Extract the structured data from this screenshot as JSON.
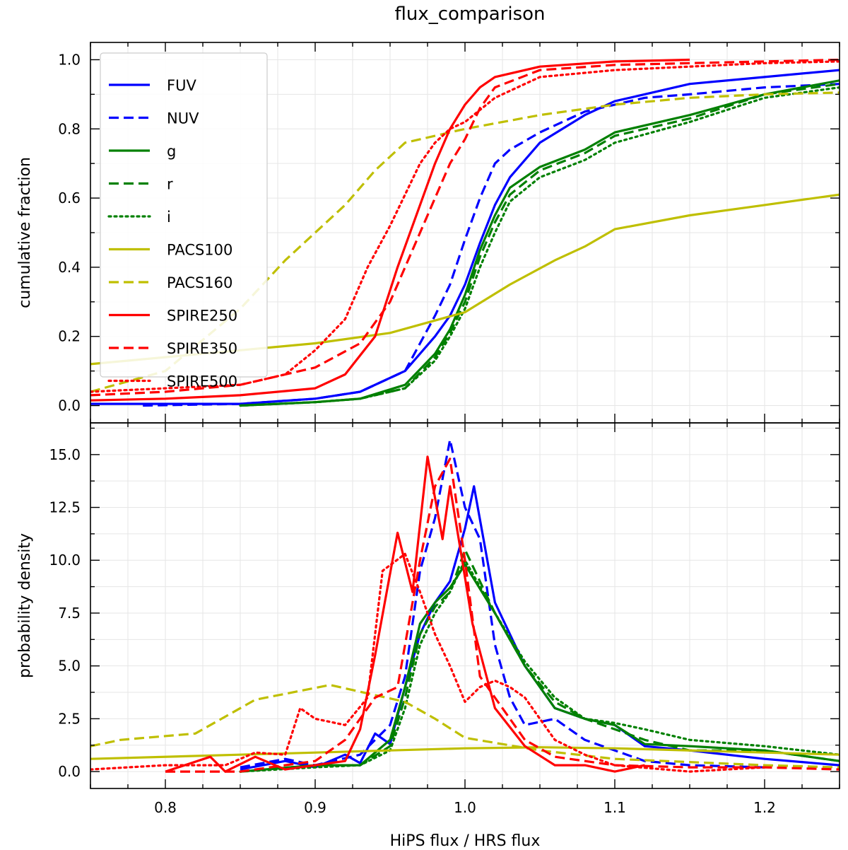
{
  "chart_data": {
    "type": "line",
    "title": "flux_comparison",
    "xlabel": "HiPS flux / HRS flux",
    "xlim": [
      0.75,
      1.25
    ],
    "xticks": [
      "0.8",
      "0.9",
      "1.0",
      "1.1",
      "1.2"
    ],
    "legend_position": "top-left",
    "legend": [
      {
        "label": "FUV",
        "color": "#0000ff",
        "style": "solid"
      },
      {
        "label": "NUV",
        "color": "#0000ff",
        "style": "dashed"
      },
      {
        "label": "g",
        "color": "#008000",
        "style": "solid"
      },
      {
        "label": "r",
        "color": "#008000",
        "style": "dashed"
      },
      {
        "label": "i",
        "color": "#008000",
        "style": "dotted"
      },
      {
        "label": "PACS100",
        "color": "#bfbf00",
        "style": "solid"
      },
      {
        "label": "PACS160",
        "color": "#bfbf00",
        "style": "dashed"
      },
      {
        "label": "SPIRE250",
        "color": "#ff0000",
        "style": "solid"
      },
      {
        "label": "SPIRE350",
        "color": "#ff0000",
        "style": "dashed"
      },
      {
        "label": "SPIRE500",
        "color": "#ff0000",
        "style": "dotted"
      }
    ],
    "panels": [
      {
        "name": "cumulative",
        "ylabel": "cumulative fraction",
        "ylim": [
          -0.05,
          1.05
        ],
        "yticks": [
          "0.0",
          "0.2",
          "0.4",
          "0.6",
          "0.8",
          "1.0"
        ],
        "series": [
          {
            "name": "FUV",
            "x": [
              0.75,
              0.85,
              0.9,
              0.93,
              0.96,
              0.98,
              0.99,
              1.0,
              1.01,
              1.02,
              1.03,
              1.05,
              1.08,
              1.1,
              1.15,
              1.2,
              1.25
            ],
            "y": [
              0.005,
              0.005,
              0.02,
              0.04,
              0.1,
              0.2,
              0.26,
              0.35,
              0.47,
              0.58,
              0.66,
              0.76,
              0.84,
              0.88,
              0.93,
              0.95,
              0.97
            ]
          },
          {
            "name": "NUV",
            "x": [
              0.785,
              0.85,
              0.9,
              0.93,
              0.96,
              0.98,
              0.99,
              1.0,
              1.01,
              1.02,
              1.03,
              1.05,
              1.08,
              1.12,
              1.15,
              1.2,
              1.25
            ],
            "y": [
              0.0,
              0.005,
              0.02,
              0.04,
              0.1,
              0.26,
              0.35,
              0.48,
              0.6,
              0.7,
              0.74,
              0.79,
              0.85,
              0.89,
              0.9,
              0.92,
              0.93
            ]
          },
          {
            "name": "g",
            "x": [
              0.85,
              0.9,
              0.93,
              0.96,
              0.98,
              0.99,
              1.0,
              1.01,
              1.02,
              1.03,
              1.05,
              1.08,
              1.1,
              1.15,
              1.2,
              1.25
            ],
            "y": [
              0.0,
              0.01,
              0.02,
              0.06,
              0.15,
              0.22,
              0.32,
              0.45,
              0.55,
              0.63,
              0.69,
              0.74,
              0.79,
              0.84,
              0.9,
              0.94
            ]
          },
          {
            "name": "r",
            "x": [
              0.85,
              0.9,
              0.93,
              0.96,
              0.98,
              0.99,
              1.0,
              1.01,
              1.02,
              1.03,
              1.05,
              1.08,
              1.1,
              1.15,
              1.2,
              1.25
            ],
            "y": [
              0.0,
              0.01,
              0.02,
              0.05,
              0.14,
              0.21,
              0.3,
              0.43,
              0.53,
              0.61,
              0.68,
              0.73,
              0.78,
              0.83,
              0.9,
              0.93
            ]
          },
          {
            "name": "i",
            "x": [
              0.85,
              0.9,
              0.93,
              0.96,
              0.98,
              0.99,
              1.0,
              1.01,
              1.02,
              1.03,
              1.05,
              1.08,
              1.1,
              1.15,
              1.2,
              1.25
            ],
            "y": [
              0.0,
              0.01,
              0.02,
              0.05,
              0.13,
              0.2,
              0.28,
              0.4,
              0.5,
              0.59,
              0.66,
              0.71,
              0.76,
              0.82,
              0.89,
              0.92
            ]
          },
          {
            "name": "PACS100",
            "x": [
              0.75,
              0.8,
              0.85,
              0.9,
              0.95,
              1.0,
              1.03,
              1.06,
              1.08,
              1.1,
              1.15,
              1.2,
              1.25
            ],
            "y": [
              0.12,
              0.14,
              0.16,
              0.18,
              0.21,
              0.27,
              0.35,
              0.42,
              0.46,
              0.51,
              0.55,
              0.58,
              0.61
            ]
          },
          {
            "name": "PACS160",
            "x": [
              0.75,
              0.8,
              0.85,
              0.88,
              0.9,
              0.92,
              0.94,
              0.96,
              0.98,
              1.0,
              1.05,
              1.1,
              1.15,
              1.2,
              1.25
            ],
            "y": [
              0.04,
              0.1,
              0.28,
              0.42,
              0.5,
              0.58,
              0.68,
              0.76,
              0.78,
              0.8,
              0.84,
              0.87,
              0.89,
              0.9,
              0.905
            ]
          },
          {
            "name": "SPIRE250",
            "x": [
              0.75,
              0.8,
              0.85,
              0.9,
              0.92,
              0.94,
              0.955,
              0.97,
              0.98,
              0.99,
              1.0,
              1.01,
              1.02,
              1.05,
              1.1,
              1.15
            ],
            "y": [
              0.015,
              0.02,
              0.03,
              0.05,
              0.09,
              0.2,
              0.4,
              0.58,
              0.7,
              0.8,
              0.87,
              0.92,
              0.95,
              0.98,
              0.995,
              1.0
            ]
          },
          {
            "name": "SPIRE350",
            "x": [
              0.75,
              0.8,
              0.85,
              0.9,
              0.93,
              0.95,
              0.965,
              0.98,
              0.99,
              1.0,
              1.01,
              1.02,
              1.05,
              1.1,
              1.15,
              1.2,
              1.25
            ],
            "y": [
              0.03,
              0.04,
              0.06,
              0.11,
              0.18,
              0.3,
              0.45,
              0.6,
              0.7,
              0.77,
              0.86,
              0.92,
              0.97,
              0.985,
              0.99,
              0.995,
              1.0
            ]
          },
          {
            "name": "SPIRE500",
            "x": [
              0.75,
              0.8,
              0.85,
              0.88,
              0.9,
              0.92,
              0.935,
              0.95,
              0.96,
              0.97,
              0.98,
              0.99,
              1.0,
              1.02,
              1.05,
              1.1,
              1.15,
              1.2,
              1.25
            ],
            "y": [
              0.04,
              0.05,
              0.06,
              0.09,
              0.16,
              0.25,
              0.4,
              0.52,
              0.61,
              0.7,
              0.76,
              0.8,
              0.82,
              0.89,
              0.95,
              0.97,
              0.98,
              0.99,
              0.995
            ]
          }
        ]
      },
      {
        "name": "density",
        "ylabel": "probability density",
        "ylim": [
          -0.8,
          16.5
        ],
        "yticks": [
          "0.0",
          "2.5",
          "5.0",
          "7.5",
          "10.0",
          "12.5",
          "15.0"
        ],
        "series": [
          {
            "name": "FUV",
            "x": [
              0.85,
              0.88,
              0.9,
              0.92,
              0.93,
              0.94,
              0.95,
              0.96,
              0.97,
              0.98,
              0.99,
              1.0,
              1.006,
              1.02,
              1.04,
              1.06,
              1.08,
              1.1,
              1.12,
              1.15,
              1.2,
              1.25
            ],
            "y": [
              0.1,
              0.5,
              0.2,
              0.8,
              0.4,
              1.8,
              1.3,
              4.0,
              6.5,
              8.0,
              9.0,
              11.5,
              13.5,
              8.0,
              5.0,
              3.0,
              2.5,
              2.2,
              1.2,
              1.0,
              0.6,
              0.3
            ]
          },
          {
            "name": "NUV",
            "x": [
              0.85,
              0.88,
              0.9,
              0.93,
              0.95,
              0.96,
              0.97,
              0.98,
              0.99,
              1.0,
              1.01,
              1.02,
              1.03,
              1.04,
              1.06,
              1.08,
              1.1,
              1.12,
              1.15,
              1.2
            ],
            "y": [
              0.2,
              0.6,
              0.3,
              0.8,
              2.2,
              4.5,
              9.5,
              12.0,
              15.7,
              12.5,
              11.0,
              6.0,
              3.5,
              2.2,
              2.5,
              1.5,
              1.0,
              0.5,
              0.3,
              0.2
            ]
          },
          {
            "name": "g",
            "x": [
              0.85,
              0.9,
              0.93,
              0.95,
              0.96,
              0.97,
              0.98,
              0.99,
              1.0,
              1.02,
              1.04,
              1.06,
              1.08,
              1.1,
              1.12,
              1.15,
              1.2,
              1.25
            ],
            "y": [
              0.0,
              0.3,
              0.3,
              1.5,
              4.0,
              7.0,
              8.0,
              8.7,
              9.8,
              7.5,
              5.0,
              3.0,
              2.5,
              2.2,
              1.3,
              1.2,
              1.0,
              0.5
            ]
          },
          {
            "name": "r",
            "x": [
              0.85,
              0.9,
              0.93,
              0.95,
              0.96,
              0.97,
              0.98,
              0.99,
              1.0,
              1.02,
              1.04,
              1.06,
              1.08,
              1.1,
              1.12,
              1.15,
              1.2,
              1.25
            ],
            "y": [
              0.0,
              0.3,
              0.3,
              1.2,
              3.5,
              6.5,
              7.8,
              8.5,
              10.5,
              7.5,
              5.0,
              3.3,
              2.5,
              2.0,
              1.5,
              1.0,
              1.0,
              0.5
            ]
          },
          {
            "name": "i",
            "x": [
              0.85,
              0.9,
              0.93,
              0.95,
              0.96,
              0.97,
              0.98,
              0.99,
              1.0,
              1.02,
              1.04,
              1.06,
              1.08,
              1.1,
              1.12,
              1.15,
              1.2,
              1.25
            ],
            "y": [
              0.0,
              0.2,
              0.3,
              1.0,
              3.0,
              6.0,
              7.5,
              8.5,
              10.0,
              7.5,
              5.2,
              3.5,
              2.5,
              2.3,
              2.0,
              1.5,
              1.2,
              0.8
            ]
          },
          {
            "name": "PACS100",
            "x": [
              0.75,
              0.85,
              0.95,
              1.0,
              1.05,
              1.1,
              1.2,
              1.25
            ],
            "y": [
              0.6,
              0.8,
              1.0,
              1.1,
              1.15,
              1.1,
              0.9,
              0.8
            ]
          },
          {
            "name": "PACS160",
            "x": [
              0.75,
              0.77,
              0.82,
              0.86,
              0.91,
              0.96,
              0.98,
              1.0,
              1.05,
              1.1,
              1.2,
              1.25
            ],
            "y": [
              1.2,
              1.5,
              1.8,
              3.4,
              4.1,
              3.3,
              2.5,
              1.6,
              1.0,
              0.6,
              0.3,
              0.2
            ]
          },
          {
            "name": "SPIRE250",
            "x": [
              0.8,
              0.83,
              0.84,
              0.86,
              0.88,
              0.9,
              0.92,
              0.93,
              0.94,
              0.955,
              0.965,
              0.975,
              0.985,
              0.99,
              0.997,
              1.005,
              1.02,
              1.04,
              1.06,
              1.08,
              1.1,
              1.12
            ],
            "y": [
              0.0,
              0.7,
              0.0,
              0.7,
              0.1,
              0.3,
              0.5,
              2.0,
              5.5,
              11.3,
              8.5,
              14.9,
              11.0,
              13.5,
              10.5,
              7.0,
              3.0,
              1.2,
              0.3,
              0.3,
              0.0,
              0.3
            ]
          },
          {
            "name": "SPIRE350",
            "x": [
              0.8,
              0.85,
              0.88,
              0.9,
              0.92,
              0.94,
              0.955,
              0.97,
              0.98,
              0.99,
              1.0,
              1.01,
              1.02,
              1.04,
              1.06,
              1.08,
              1.1,
              1.15,
              1.2,
              1.25
            ],
            "y": [
              0.0,
              0.0,
              0.3,
              0.5,
              1.5,
              3.5,
              4.0,
              10.0,
              13.5,
              14.8,
              10.0,
              4.5,
              3.5,
              1.5,
              0.7,
              0.5,
              0.3,
              0.2,
              0.2,
              0.1
            ]
          },
          {
            "name": "SPIRE500",
            "x": [
              0.75,
              0.8,
              0.84,
              0.86,
              0.88,
              0.89,
              0.9,
              0.92,
              0.935,
              0.945,
              0.96,
              0.97,
              0.98,
              0.99,
              1.0,
              1.01,
              1.02,
              1.03,
              1.04,
              1.06,
              1.08,
              1.1,
              1.15,
              1.2
            ],
            "y": [
              0.1,
              0.3,
              0.3,
              0.9,
              0.8,
              3.0,
              2.5,
              2.2,
              3.5,
              9.5,
              10.3,
              8.5,
              6.5,
              5.0,
              3.3,
              4.0,
              4.3,
              4.0,
              3.5,
              1.5,
              0.8,
              0.3,
              0.0,
              0.2
            ]
          }
        ]
      }
    ]
  }
}
